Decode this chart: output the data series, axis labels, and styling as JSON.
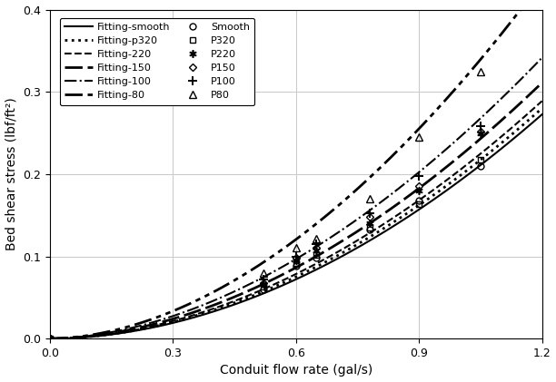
{
  "title": "",
  "xlabel": "Conduit flow rate (gal/s)",
  "ylabel": "Bed shear stress (lbf/ft²)",
  "xlim": [
    0,
    1.2
  ],
  "ylim": [
    0,
    0.4
  ],
  "xticks": [
    0.0,
    0.3,
    0.6,
    0.9,
    1.2
  ],
  "yticks": [
    0.0,
    0.1,
    0.2,
    0.3,
    0.4
  ],
  "fitting_params": {
    "smooth": {
      "a": 0.192,
      "b": 1.92
    },
    "p320": {
      "a": 0.198,
      "b": 1.9
    },
    "p220": {
      "a": 0.205,
      "b": 1.88
    },
    "p150": {
      "a": 0.222,
      "b": 1.85
    },
    "p100": {
      "a": 0.245,
      "b": 1.82
    },
    "p80": {
      "a": 0.31,
      "b": 1.85
    }
  },
  "measured_smooth": {
    "x": [
      0.0,
      0.52,
      0.6,
      0.65,
      0.78,
      0.9,
      1.05
    ],
    "y": [
      0.0,
      0.06,
      0.088,
      0.098,
      0.133,
      0.168,
      0.21
    ]
  },
  "measured_p320": {
    "x": [
      0.0,
      0.52,
      0.6,
      0.65,
      0.78,
      0.9,
      1.05
    ],
    "y": [
      0.0,
      0.063,
      0.092,
      0.102,
      0.135,
      0.163,
      0.218
    ]
  },
  "measured_p220": {
    "x": [
      0.0,
      0.52,
      0.6,
      0.65,
      0.78,
      0.9,
      1.05
    ],
    "y": [
      0.0,
      0.066,
      0.095,
      0.107,
      0.14,
      0.18,
      0.25
    ]
  },
  "measured_p150": {
    "x": [
      0.0,
      0.52,
      0.6,
      0.65,
      0.78,
      0.9,
      1.05
    ],
    "y": [
      0.0,
      0.068,
      0.098,
      0.11,
      0.148,
      0.185,
      0.252
    ]
  },
  "measured_p100": {
    "x": [
      0.0,
      0.52,
      0.6,
      0.65,
      0.78,
      0.9,
      1.05
    ],
    "y": [
      0.0,
      0.072,
      0.1,
      0.115,
      0.152,
      0.198,
      0.258
    ]
  },
  "measured_p80": {
    "x": [
      0.0,
      0.52,
      0.6,
      0.65,
      0.78,
      0.9,
      1.05
    ],
    "y": [
      0.0,
      0.08,
      0.11,
      0.122,
      0.17,
      0.245,
      0.325
    ]
  },
  "bg_color": "#ffffff",
  "grid_color": "#c8c8c8"
}
